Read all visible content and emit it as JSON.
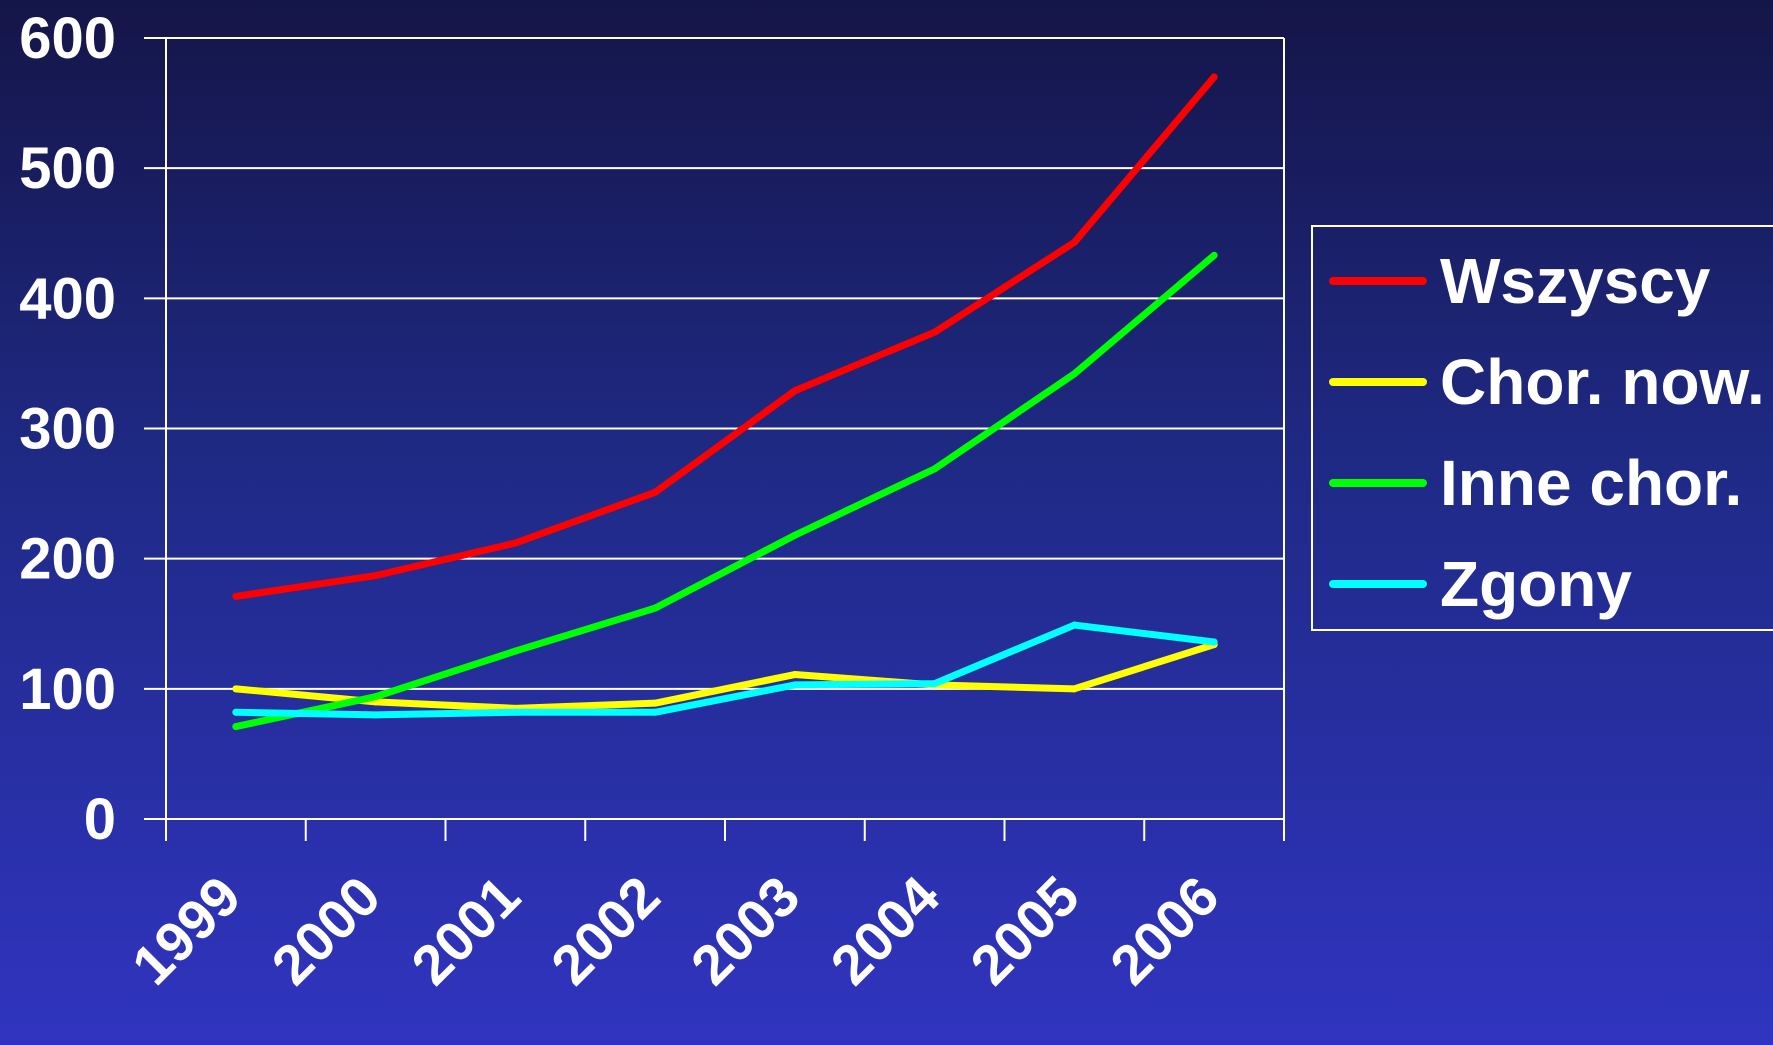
{
  "chart_data": {
    "type": "line",
    "title": "",
    "xlabel": "",
    "ylabel": "",
    "categories": [
      "1999",
      "2000",
      "2001",
      "2002",
      "2003",
      "2004",
      "2005",
      "2006"
    ],
    "ylim": [
      0,
      600
    ],
    "yticks": [
      "0",
      "100",
      "200",
      "300",
      "400",
      "500",
      "600"
    ],
    "grid": true,
    "legend_position": "right",
    "series": [
      {
        "name": "Wszyscy",
        "color": "#ff0000",
        "values": [
          171,
          187,
          212,
          251,
          329,
          374,
          443,
          570
        ]
      },
      {
        "name": "Chor. now.",
        "color": "#ffff00",
        "values": [
          100,
          90,
          85,
          89,
          111,
          103,
          100,
          134
        ]
      },
      {
        "name": "Inne chor.",
        "color": "#00ff00",
        "values": [
          71,
          94,
          129,
          162,
          218,
          269,
          342,
          433
        ]
      },
      {
        "name": "Zgony",
        "color": "#00ffff",
        "values": [
          82,
          80,
          82,
          82,
          103,
          104,
          149,
          136
        ]
      }
    ]
  }
}
